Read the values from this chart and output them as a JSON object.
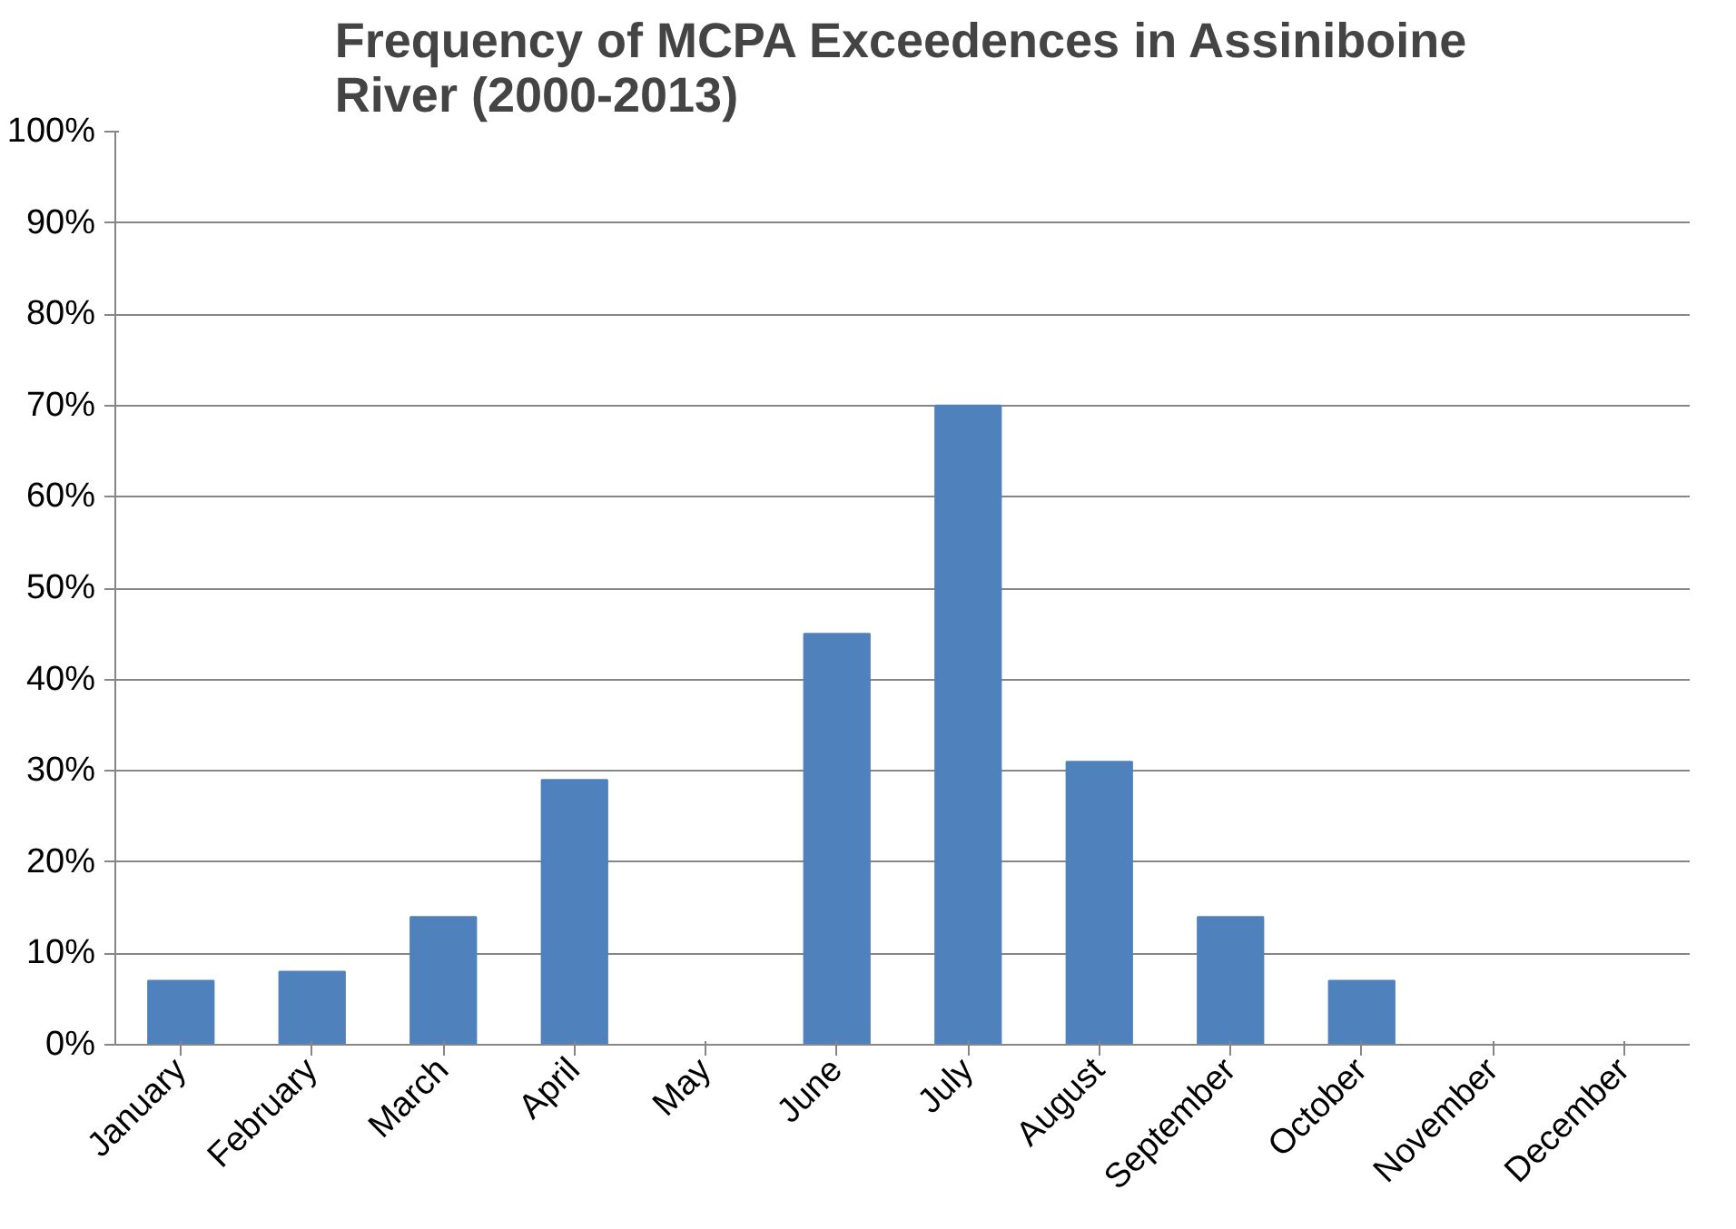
{
  "chart_data": {
    "type": "bar",
    "title": "Frequency of MCPA Exceedences in Assiniboine River (2000-2013)",
    "categories": [
      "January",
      "February",
      "March",
      "April",
      "May",
      "June",
      "July",
      "August",
      "September",
      "October",
      "November",
      "December"
    ],
    "values": [
      7,
      8,
      14,
      29,
      0,
      45,
      70,
      31,
      14,
      7,
      0,
      0
    ],
    "color": "#4f81bd",
    "ylim": [
      0,
      100
    ],
    "yticks": [
      {
        "value": 0,
        "label": "0%"
      },
      {
        "value": 10,
        "label": "10%"
      },
      {
        "value": 20,
        "label": "20%"
      },
      {
        "value": 30,
        "label": "30%"
      },
      {
        "value": 40,
        "label": "40%"
      },
      {
        "value": 50,
        "label": "50%"
      },
      {
        "value": 60,
        "label": "60%"
      },
      {
        "value": 70,
        "label": "70%"
      },
      {
        "value": 80,
        "label": "80%"
      },
      {
        "value": 90,
        "label": "90%"
      },
      {
        "value": 100,
        "label": "100%"
      }
    ],
    "grid": "y"
  }
}
